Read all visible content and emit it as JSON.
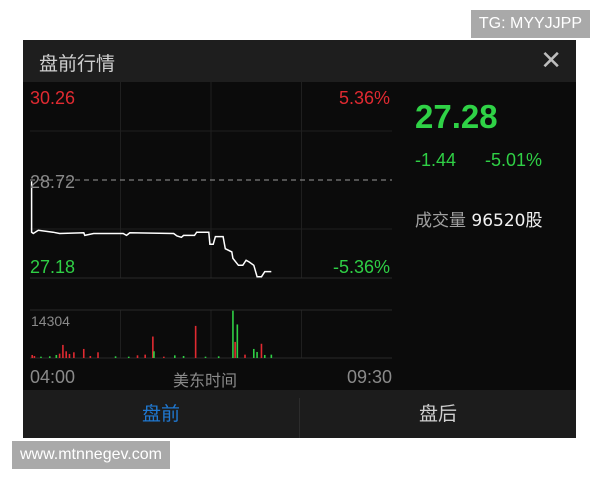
{
  "watermarks": {
    "top": "TG: MYYJJPP",
    "bottom": "www.mtnnegev.com"
  },
  "header": {
    "title": "盘前行情",
    "close_icon": "close-icon"
  },
  "quote": {
    "price": "27.28",
    "change": "-1.44",
    "change_pct": "-5.01%",
    "volume_label": "成交量",
    "volume_value": "96520股"
  },
  "colors": {
    "up": "#e02a31",
    "down": "#2fcf45",
    "line": "#ffffff",
    "active_tab": "#1f78d1"
  },
  "tabs": [
    {
      "label": "盘前",
      "active": true
    },
    {
      "label": "盘后",
      "active": false
    }
  ],
  "chart_data": {
    "type": "line",
    "xlabel": "美东时间",
    "x_ticks": [
      "04:00",
      "09:30"
    ],
    "x_range_minutes_from": "04:00",
    "x_range": [
      0,
      330
    ],
    "y_range": [
      27.18,
      30.26
    ],
    "prev_close": "28.72",
    "y_labels": {
      "max": "30.26",
      "min": "27.18",
      "max_pct": "5.36%",
      "min_pct": "-5.36%",
      "ref": "28.72"
    },
    "grid": true,
    "price_series": [
      [
        1.5,
        28.7
      ],
      [
        1.5,
        27.9
      ],
      [
        3,
        27.88
      ],
      [
        7.6,
        27.93
      ],
      [
        21,
        27.9
      ],
      [
        27,
        27.88
      ],
      [
        49,
        27.89
      ],
      [
        50,
        27.85
      ],
      [
        58,
        27.88
      ],
      [
        85,
        27.88
      ],
      [
        88,
        27.85
      ],
      [
        91,
        27.89
      ],
      [
        131,
        27.88
      ],
      [
        134,
        27.84
      ],
      [
        138,
        27.82
      ],
      [
        140,
        27.85
      ],
      [
        150,
        27.85
      ],
      [
        152,
        27.9
      ],
      [
        163,
        27.9
      ],
      [
        164,
        27.71
      ],
      [
        167,
        27.71
      ],
      [
        169,
        27.83
      ],
      [
        176,
        27.83
      ],
      [
        178,
        27.64
      ],
      [
        184,
        27.59
      ],
      [
        185,
        27.49
      ],
      [
        190,
        27.38
      ],
      [
        194,
        27.38
      ],
      [
        197,
        27.46
      ],
      [
        200,
        27.43
      ],
      [
        204,
        27.38
      ],
      [
        207,
        27.2
      ],
      [
        211,
        27.2
      ],
      [
        214,
        27.28
      ],
      [
        220,
        27.28
      ]
    ],
    "volume_max": "14304",
    "volume_series": [
      [
        2,
        900,
        "up"
      ],
      [
        4,
        600,
        "up"
      ],
      [
        10,
        400,
        "down"
      ],
      [
        18,
        500,
        "down"
      ],
      [
        24,
        900,
        "down"
      ],
      [
        27,
        1300,
        "up"
      ],
      [
        30,
        3900,
        "up"
      ],
      [
        33,
        2000,
        "up"
      ],
      [
        36,
        1200,
        "up"
      ],
      [
        40,
        1700,
        "up"
      ],
      [
        49,
        2700,
        "up"
      ],
      [
        55,
        600,
        "up"
      ],
      [
        62,
        1700,
        "up"
      ],
      [
        78,
        500,
        "down"
      ],
      [
        90,
        400,
        "down"
      ],
      [
        98,
        800,
        "up"
      ],
      [
        105,
        1000,
        "up"
      ],
      [
        112,
        6400,
        "up"
      ],
      [
        113,
        2000,
        "down"
      ],
      [
        122,
        400,
        "up"
      ],
      [
        132,
        800,
        "down"
      ],
      [
        140,
        600,
        "down"
      ],
      [
        151,
        9570,
        "up"
      ],
      [
        160,
        400,
        "down"
      ],
      [
        172,
        500,
        "down"
      ],
      [
        185,
        14100,
        "down"
      ],
      [
        187,
        4800,
        "up"
      ],
      [
        189,
        10000,
        "down"
      ],
      [
        196,
        1000,
        "up"
      ],
      [
        204,
        2700,
        "down"
      ],
      [
        207,
        1800,
        "down"
      ],
      [
        211,
        4240,
        "up"
      ],
      [
        214,
        900,
        "down"
      ],
      [
        220,
        1000,
        "down"
      ]
    ]
  }
}
